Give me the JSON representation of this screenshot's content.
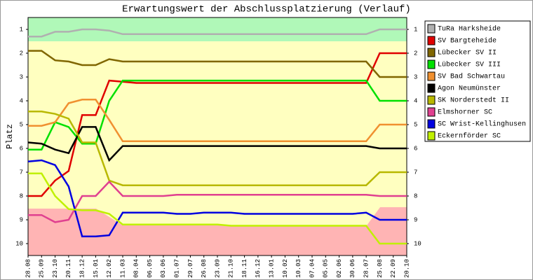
{
  "chart_data": {
    "type": "line",
    "title": "Erwartungswert der Abschlussplatzierung (Verlauf)",
    "y_label": "Platz",
    "categories": [
      "28.08",
      "25.09",
      "23.10",
      "20.11",
      "18.12",
      "15.01",
      "12.02",
      "11.03",
      "08.04",
      "06.05",
      "03.06",
      "01.07",
      "29.07",
      "26.08",
      "23.09",
      "21.10",
      "18.11",
      "16.12",
      "13.01",
      "10.02",
      "10.03",
      "07.04",
      "05.05",
      "02.06",
      "30.06",
      "28.07",
      "25.08",
      "22.09",
      "20.10"
    ],
    "ylim": [
      0.5,
      10.5
    ],
    "inverted": true,
    "yticks": [
      1,
      2,
      3,
      4,
      5,
      6,
      7,
      8,
      9,
      10
    ],
    "series": [
      {
        "name": "TuRa Harksheide",
        "color": "#b0b0b0",
        "values": [
          1.3,
          1.3,
          1.1,
          1.1,
          1.0,
          1.0,
          1.05,
          1.2,
          1.2,
          1.2,
          1.2,
          1.2,
          1.2,
          1.2,
          1.2,
          1.2,
          1.2,
          1.2,
          1.2,
          1.2,
          1.2,
          1.2,
          1.2,
          1.2,
          1.2,
          1.2,
          1.0,
          1.0,
          1.0
        ]
      },
      {
        "name": "SV Bargteheide",
        "color": "#e00000",
        "values": [
          8.0,
          8.0,
          7.35,
          6.95,
          4.6,
          4.6,
          3.15,
          3.2,
          3.25,
          3.25,
          3.25,
          3.25,
          3.25,
          3.25,
          3.25,
          3.25,
          3.25,
          3.25,
          3.25,
          3.25,
          3.25,
          3.25,
          3.25,
          3.25,
          3.25,
          3.25,
          2.0,
          2.0,
          2.0
        ]
      },
      {
        "name": "Lübecker SV II",
        "color": "#806600",
        "values": [
          1.9,
          1.9,
          2.3,
          2.35,
          2.5,
          2.5,
          2.25,
          2.35,
          2.35,
          2.35,
          2.35,
          2.35,
          2.35,
          2.35,
          2.35,
          2.35,
          2.35,
          2.35,
          2.35,
          2.35,
          2.35,
          2.35,
          2.35,
          2.35,
          2.35,
          2.35,
          3.0,
          3.0,
          3.0
        ]
      },
      {
        "name": "Lübecker SV III",
        "color": "#00e000",
        "values": [
          6.05,
          6.05,
          4.9,
          5.1,
          5.8,
          5.8,
          4.0,
          3.15,
          3.15,
          3.15,
          3.15,
          3.15,
          3.15,
          3.15,
          3.15,
          3.15,
          3.15,
          3.15,
          3.15,
          3.15,
          3.15,
          3.15,
          3.15,
          3.15,
          3.15,
          3.15,
          4.0,
          4.0,
          4.0
        ]
      },
      {
        "name": "SV Bad Schwartau",
        "color": "#f09030",
        "values": [
          5.05,
          5.05,
          4.9,
          4.1,
          3.95,
          3.95,
          4.8,
          5.7,
          5.7,
          5.7,
          5.7,
          5.7,
          5.7,
          5.7,
          5.7,
          5.7,
          5.7,
          5.7,
          5.7,
          5.7,
          5.7,
          5.7,
          5.7,
          5.7,
          5.7,
          5.7,
          5.0,
          5.0,
          5.0
        ]
      },
      {
        "name": "Agon Neumünster",
        "color": "#000000",
        "values": [
          5.75,
          5.8,
          6.05,
          6.2,
          5.1,
          5.1,
          6.5,
          5.9,
          5.9,
          5.9,
          5.9,
          5.9,
          5.9,
          5.9,
          5.9,
          5.9,
          5.9,
          5.9,
          5.9,
          5.9,
          5.9,
          5.9,
          5.9,
          5.9,
          5.9,
          5.9,
          6.0,
          6.0,
          6.0
        ]
      },
      {
        "name": "SK Norderstedt II",
        "color": "#b8b800",
        "values": [
          4.45,
          4.45,
          4.55,
          4.75,
          5.75,
          5.75,
          7.35,
          7.55,
          7.55,
          7.55,
          7.55,
          7.55,
          7.55,
          7.55,
          7.55,
          7.55,
          7.55,
          7.55,
          7.55,
          7.55,
          7.55,
          7.55,
          7.55,
          7.55,
          7.55,
          7.55,
          7.0,
          7.0,
          7.0
        ]
      },
      {
        "name": "Elmshorner SC",
        "color": "#e04090",
        "values": [
          8.8,
          8.8,
          9.1,
          9.0,
          8.0,
          8.0,
          7.4,
          8.0,
          8.0,
          8.0,
          8.0,
          7.95,
          7.95,
          7.95,
          7.95,
          7.95,
          7.95,
          7.95,
          7.95,
          7.95,
          7.95,
          7.95,
          7.95,
          7.95,
          7.95,
          7.95,
          8.0,
          8.0,
          8.0
        ]
      },
      {
        "name": "SC Wrist-Kellinghusen",
        "color": "#0000e0",
        "values": [
          6.55,
          6.5,
          6.7,
          7.6,
          9.7,
          9.7,
          9.65,
          8.7,
          8.7,
          8.7,
          8.7,
          8.75,
          8.75,
          8.7,
          8.7,
          8.7,
          8.75,
          8.75,
          8.75,
          8.75,
          8.75,
          8.75,
          8.75,
          8.75,
          8.75,
          8.7,
          9.0,
          9.0,
          9.0
        ]
      },
      {
        "name": "Eckernförder SC",
        "color": "#c0f000",
        "values": [
          7.05,
          7.05,
          8.0,
          8.55,
          8.6,
          8.6,
          8.75,
          9.2,
          9.2,
          9.2,
          9.2,
          9.2,
          9.2,
          9.2,
          9.2,
          9.25,
          9.25,
          9.25,
          9.25,
          9.25,
          9.25,
          9.25,
          9.25,
          9.25,
          9.25,
          9.25,
          10.0,
          10.0,
          10.0
        ]
      }
    ]
  }
}
